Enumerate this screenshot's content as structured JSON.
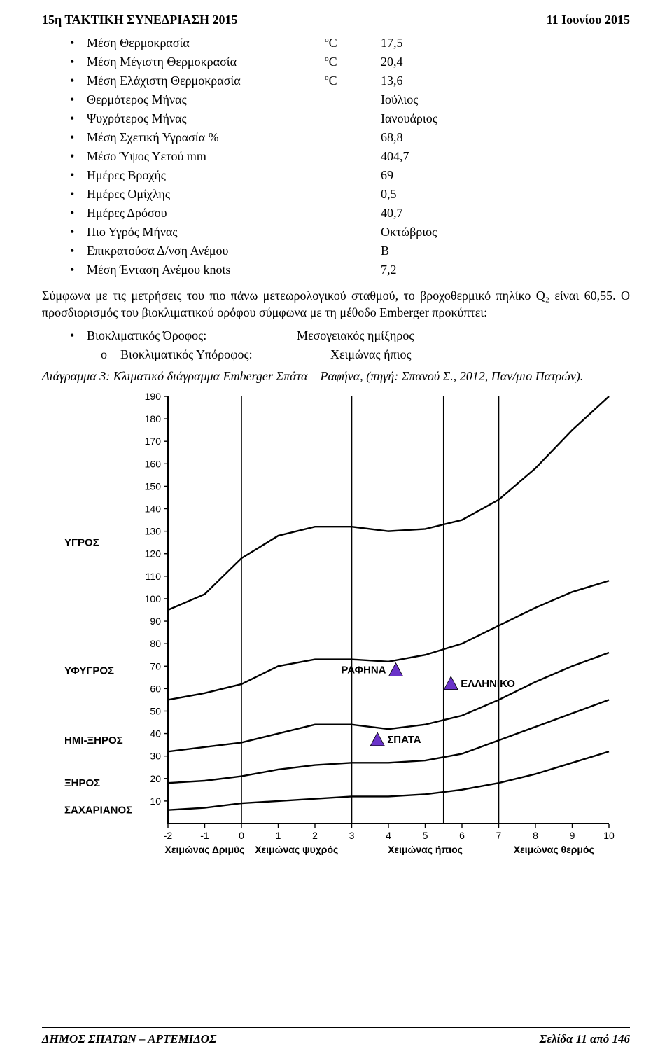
{
  "header": {
    "left": "15η ΤΑΚΤΙΚΗ ΣΥΝΕΔΡΙΑΣΗ 2015",
    "right": "11 Ιουνίου 2015"
  },
  "climate": [
    {
      "label": "Μέση Θερμοκρασία",
      "unit": "ºC",
      "value": "17,5"
    },
    {
      "label": "Μέση Μέγιστη Θερμοκρασία",
      "unit": "ºC",
      "value": "20,4"
    },
    {
      "label": "Μέση Ελάχιστη Θερμοκρασία",
      "unit": "ºC",
      "value": "13,6"
    },
    {
      "label": "Θερμότερος Μήνας",
      "unit": "",
      "value": "Ιούλιος"
    },
    {
      "label": "Ψυχρότερος Μήνας",
      "unit": "",
      "value": "Ιανουάριος"
    },
    {
      "label": "Μέση Σχετική Υγρασία %",
      "unit": "",
      "value": "68,8"
    },
    {
      "label": "Μέσο Ύψος Υετού mm",
      "unit": "",
      "value": "404,7"
    },
    {
      "label": "Ημέρες Βροχής",
      "unit": "",
      "value": "69"
    },
    {
      "label": "Ημέρες Ομίχλης",
      "unit": "",
      "value": "0,5"
    },
    {
      "label": "Ημέρες Δρόσου",
      "unit": "",
      "value": "40,7"
    },
    {
      "label": "Πιο Υγρός Μήνας",
      "unit": "",
      "value": "Οκτώβριος"
    },
    {
      "label": "Επικρατούσα Δ/νση Ανέμου",
      "unit": "",
      "value": "Β"
    },
    {
      "label": "Μέση Ένταση Ανέμου knots",
      "unit": "",
      "value": "7,2"
    }
  ],
  "para1": "Σύμφωνα με τις μετρήσεις του πιο πάνω μετεωρολογικού σταθμού, το βροχοθερμικό πηλίκο Q₂ είναι 60,55. Ο προσδιορισμός του βιοκλιματικού ορόφου σύμφωνα με τη μέθοδο Emberger προκύπτει:",
  "bio_floor_label": "Βιοκλιματικός Όροφος:",
  "bio_floor_value": "Μεσογειακός ημίξηρος",
  "bio_sub_label": "Βιοκλιματικός Υπόροφος:",
  "bio_sub_value": "Χειμώνας ήπιος",
  "caption": "Διάγραμμα 3: Κλιματικό διάγραμμα Emberger Σπάτα – Ραφήνα, (πηγή: Σπανού Σ., 2012, Παν/μιο Πατρών).",
  "diagram": {
    "x_range": [
      -2,
      10
    ],
    "y_range": [
      0,
      190
    ],
    "y_ticks": [
      10,
      20,
      30,
      40,
      50,
      60,
      70,
      80,
      90,
      100,
      110,
      120,
      130,
      140,
      150,
      160,
      170,
      180,
      190
    ],
    "y_ticks_extra": [],
    "x_ticks": [
      -2,
      -1,
      0,
      1,
      2,
      3,
      4,
      5,
      6,
      7,
      8,
      9,
      10
    ],
    "y_axis_label_void": "",
    "zone_labels": [
      {
        "text": "ΥΓΡΟΣ",
        "y": 125
      },
      {
        "text": "ΥΦΥΓΡΟΣ",
        "y": 68
      },
      {
        "text": "ΗΜΙ-ΞΗΡΟΣ",
        "y": 37
      },
      {
        "text": "ΞΗΡΟΣ",
        "y": 18
      },
      {
        "text": "ΣΑΧΑΡΙΑΝΟΣ",
        "y": 6
      }
    ],
    "x_zone_labels": [
      {
        "text": "Χειμώνας Δριμύς",
        "xstart": -2,
        "xend": 0
      },
      {
        "text": "Χειμώνας ψυχρός",
        "xstart": 0,
        "xend": 3
      },
      {
        "text": "Χειμώνας ήπιος",
        "xstart": 3,
        "xend": 7
      },
      {
        "text": "Χειμώνας θερμός",
        "xstart": 7,
        "xend": 10
      }
    ],
    "curves": [
      {
        "name": "curve1",
        "points": [
          {
            "x": -2,
            "y": 95
          },
          {
            "x": -1,
            "y": 102
          },
          {
            "x": 0,
            "y": 118
          },
          {
            "x": 1,
            "y": 128
          },
          {
            "x": 2,
            "y": 132
          },
          {
            "x": 3,
            "y": 132
          },
          {
            "x": 4,
            "y": 130
          },
          {
            "x": 5,
            "y": 131
          },
          {
            "x": 6,
            "y": 135
          },
          {
            "x": 7,
            "y": 144
          },
          {
            "x": 8,
            "y": 158
          },
          {
            "x": 9,
            "y": 175
          },
          {
            "x": 10,
            "y": 190
          }
        ]
      },
      {
        "name": "curve2",
        "points": [
          {
            "x": -2,
            "y": 55
          },
          {
            "x": -1,
            "y": 58
          },
          {
            "x": 0,
            "y": 62
          },
          {
            "x": 1,
            "y": 70
          },
          {
            "x": 2,
            "y": 73
          },
          {
            "x": 3,
            "y": 73
          },
          {
            "x": 4,
            "y": 72
          },
          {
            "x": 5,
            "y": 75
          },
          {
            "x": 6,
            "y": 80
          },
          {
            "x": 7,
            "y": 88
          },
          {
            "x": 8,
            "y": 96
          },
          {
            "x": 9,
            "y": 103
          },
          {
            "x": 10,
            "y": 108
          }
        ]
      },
      {
        "name": "curve3",
        "points": [
          {
            "x": -2,
            "y": 32
          },
          {
            "x": -1,
            "y": 34
          },
          {
            "x": 0,
            "y": 36
          },
          {
            "x": 1,
            "y": 40
          },
          {
            "x": 2,
            "y": 44
          },
          {
            "x": 3,
            "y": 44
          },
          {
            "x": 4,
            "y": 42
          },
          {
            "x": 5,
            "y": 44
          },
          {
            "x": 6,
            "y": 48
          },
          {
            "x": 7,
            "y": 55
          },
          {
            "x": 8,
            "y": 63
          },
          {
            "x": 9,
            "y": 70
          },
          {
            "x": 10,
            "y": 76
          }
        ]
      },
      {
        "name": "curve4",
        "points": [
          {
            "x": -2,
            "y": 18
          },
          {
            "x": -1,
            "y": 19
          },
          {
            "x": 0,
            "y": 21
          },
          {
            "x": 1,
            "y": 24
          },
          {
            "x": 2,
            "y": 26
          },
          {
            "x": 3,
            "y": 27
          },
          {
            "x": 4,
            "y": 27
          },
          {
            "x": 5,
            "y": 28
          },
          {
            "x": 6,
            "y": 31
          },
          {
            "x": 7,
            "y": 37
          },
          {
            "x": 8,
            "y": 43
          },
          {
            "x": 9,
            "y": 49
          },
          {
            "x": 10,
            "y": 55
          }
        ]
      },
      {
        "name": "curve5",
        "points": [
          {
            "x": -2,
            "y": 6
          },
          {
            "x": -1,
            "y": 7
          },
          {
            "x": 0,
            "y": 9
          },
          {
            "x": 1,
            "y": 10
          },
          {
            "x": 2,
            "y": 11
          },
          {
            "x": 3,
            "y": 12
          },
          {
            "x": 4,
            "y": 12
          },
          {
            "x": 5,
            "y": 13
          },
          {
            "x": 6,
            "y": 15
          },
          {
            "x": 7,
            "y": 18
          },
          {
            "x": 8,
            "y": 22
          },
          {
            "x": 9,
            "y": 27
          },
          {
            "x": 10,
            "y": 32
          }
        ]
      }
    ],
    "vlines": [
      0,
      3,
      5.5,
      7
    ],
    "markers": [
      {
        "label": "ΡΑΦΗΝΑ",
        "x": 4.2,
        "y": 68,
        "labelSide": "left",
        "color": "#6a33c9"
      },
      {
        "label": "ΕΛΛΗΝΙΚΟ",
        "x": 5.7,
        "y": 62,
        "labelSide": "right",
        "color": "#6a33c9"
      },
      {
        "label": "ΣΠΑΤΑ",
        "x": 3.7,
        "y": 37,
        "labelSide": "right",
        "color": "#6a33c9"
      }
    ],
    "stroke": "#000000",
    "marker_size": 11
  },
  "footer": {
    "left": "ΔΗΜΟΣ ΣΠΑΤΩΝ – ΑΡΤΕΜΙΔΟΣ",
    "right": "Σελίδα 11 από 146"
  }
}
